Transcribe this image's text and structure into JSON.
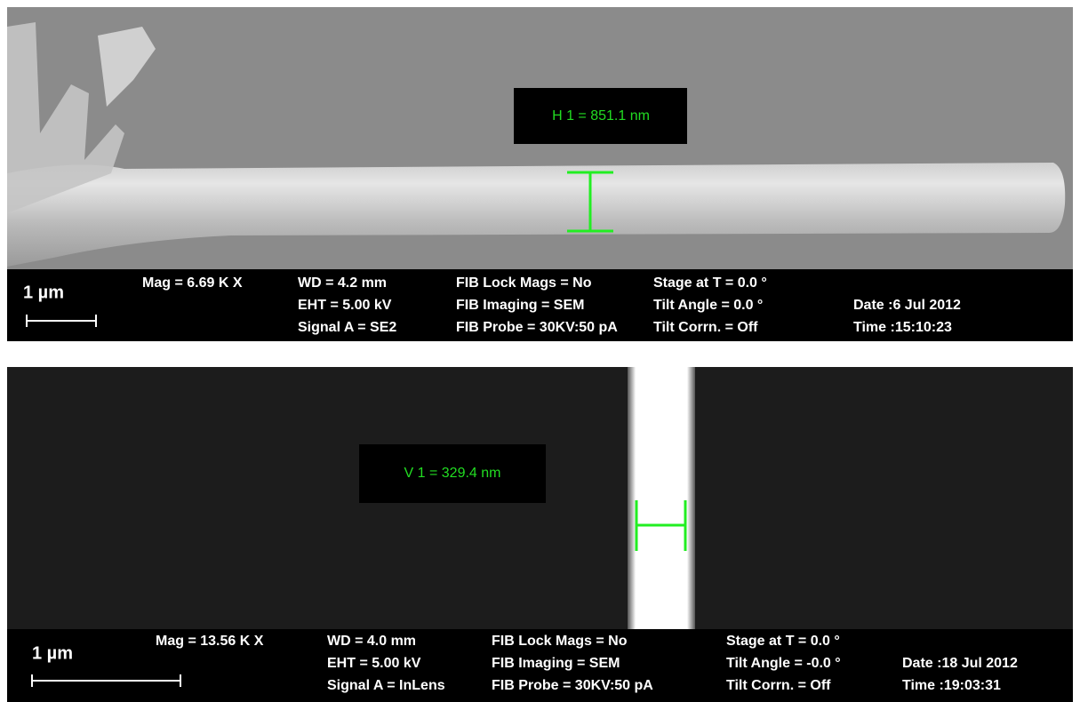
{
  "panels": [
    {
      "measurement": "H 1 = 851.1 nm",
      "scale_bar": "1 µm",
      "info": [
        [
          "Mag = 6.69 K X"
        ],
        [
          "WD = 4.2 mm",
          "EHT = 5.00 kV",
          "Signal A = SE2"
        ],
        [
          "FIB Lock Mags = No",
          "FIB Imaging = SEM",
          "FIB Probe = 30KV:50 pA"
        ],
        [
          "Stage at T = 0.0 °",
          "Tilt Angle = 0.0 °",
          "Tilt Corrn. = Off"
        ],
        [
          "Date :6 Jul 2012",
          "Time :15:10:23"
        ]
      ]
    },
    {
      "measurement": "V 1 = 329.4 nm",
      "scale_bar": "1 µm",
      "info": [
        [
          "Mag = 13.56 K X"
        ],
        [
          "WD = 4.0 mm",
          "EHT = 5.00 kV",
          "Signal A = InLens"
        ],
        [
          "FIB Lock Mags = No",
          "FIB Imaging = SEM",
          "FIB Probe = 30KV:50 pA"
        ],
        [
          "Stage at T = 0.0 °",
          "Tilt Angle = -0.0 °",
          "Tilt Corrn. = Off"
        ],
        [
          "Date :18 Jul 2012",
          "Time :19:03:31"
        ]
      ]
    }
  ]
}
